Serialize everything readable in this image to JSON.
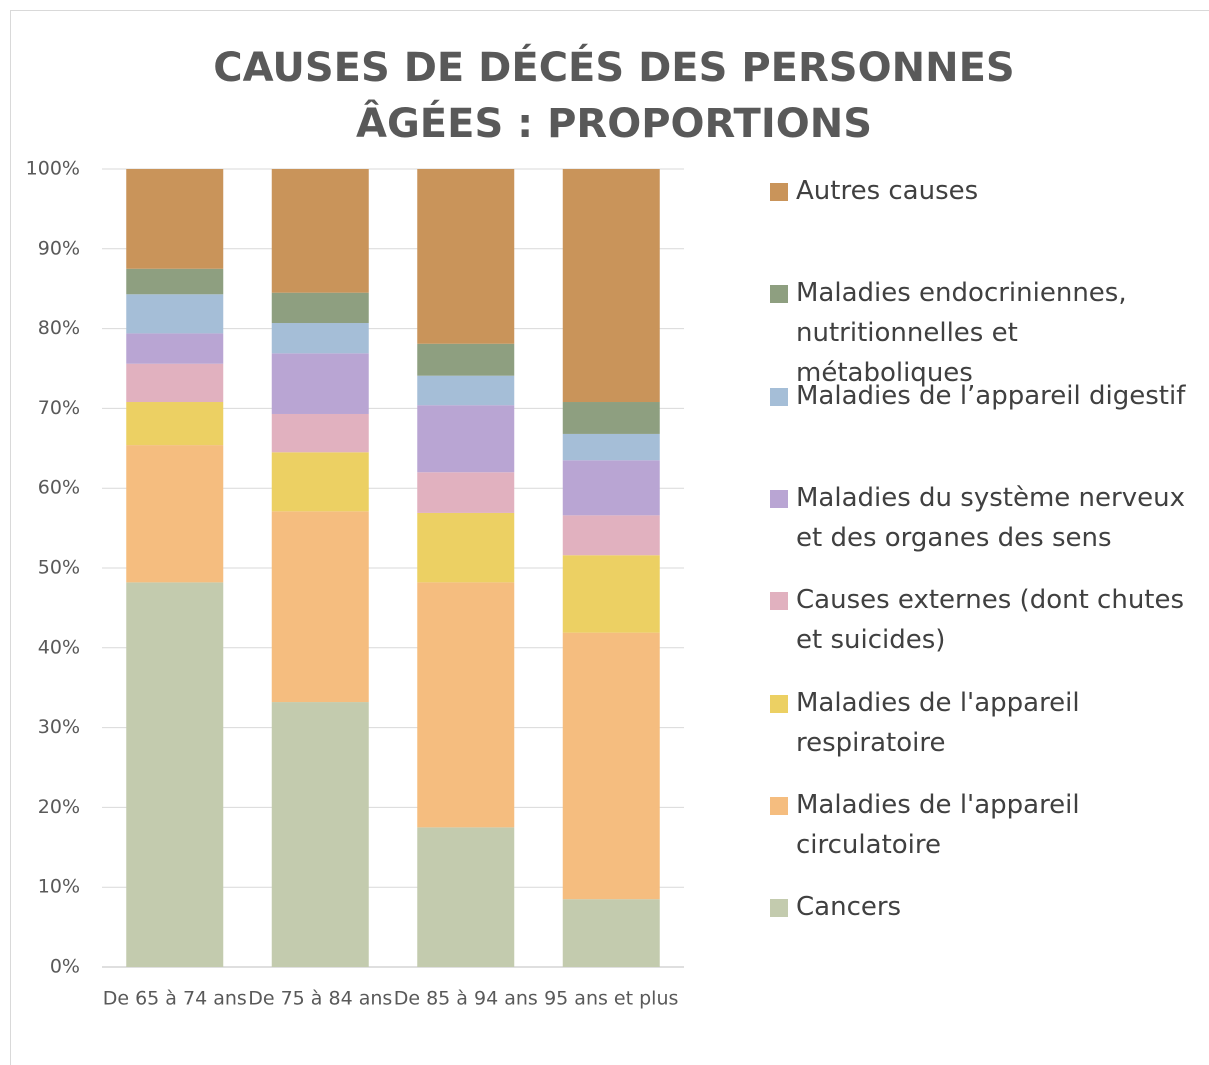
{
  "chart_data": {
    "type": "stacked_bar",
    "title": "CAUSES DE DÉCÉS DES PERSONNES ÂGÉES : PROPORTIONS",
    "categories": [
      "De 65 à 74 ans",
      "De 75 à 84 ans",
      "De 85 à 94 ans",
      "95 ans et plus"
    ],
    "series": [
      {
        "name": "Cancers",
        "color": "#c3cbae",
        "values": [
          48.2,
          33.2,
          17.5,
          8.5
        ]
      },
      {
        "name": "Maladies de l'appareil circulatoire",
        "color": "#f5bd7f",
        "values": [
          17.2,
          23.9,
          30.7,
          33.4
        ]
      },
      {
        "name": "Maladies de l'appareil respiratoire",
        "color": "#ecd063",
        "values": [
          5.4,
          7.4,
          8.7,
          9.7
        ]
      },
      {
        "name": "Causes externes (dont chutes et suicides)",
        "color": "#e1b1bf",
        "values": [
          4.8,
          4.8,
          5.1,
          5.0
        ]
      },
      {
        "name": "Maladies du système nerveux et des organes des sens",
        "color": "#b9a5d3",
        "values": [
          3.8,
          7.6,
          8.4,
          6.9
        ]
      },
      {
        "name": "Maladies de l’appareil digestif",
        "color": "#a5bed7",
        "values": [
          4.9,
          3.8,
          3.7,
          3.3
        ]
      },
      {
        "name": "Maladies endocriniennes, nutritionnelles et métaboliques",
        "color": "#8e9f80",
        "values": [
          3.2,
          3.8,
          4.0,
          4.0
        ]
      },
      {
        "name": "Autres causes",
        "color": "#c9945a",
        "values": [
          12.5,
          15.5,
          21.9,
          29.2
        ]
      }
    ],
    "ylim": [
      0,
      100
    ],
    "yticks": [
      {
        "value": 0,
        "label": "0%"
      },
      {
        "value": 10,
        "label": "10%"
      },
      {
        "value": 20,
        "label": "20%"
      },
      {
        "value": 30,
        "label": "30%"
      },
      {
        "value": 40,
        "label": "40%"
      },
      {
        "value": 50,
        "label": "50%"
      },
      {
        "value": 60,
        "label": "60%"
      },
      {
        "value": 70,
        "label": "70%"
      },
      {
        "value": 80,
        "label": "80%"
      },
      {
        "value": 90,
        "label": "90%"
      },
      {
        "value": 100,
        "label": "100%"
      }
    ],
    "grid": true,
    "legend": "right"
  }
}
